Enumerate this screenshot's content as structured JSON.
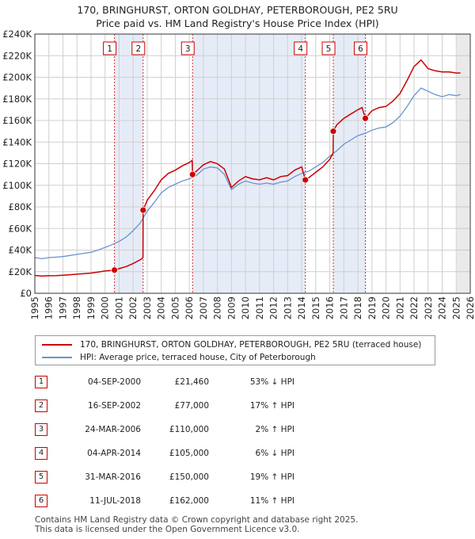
{
  "chart_data": {
    "type": "line",
    "title": "170, BRINGHURST, ORTON GOLDHAY, PETERBOROUGH, PE2 5RU",
    "subtitle": "Price paid vs. HM Land Registry's House Price Index (HPI)",
    "xlabel": "",
    "ylabel": "",
    "xlim": [
      1995,
      2026
    ],
    "ylim": [
      0,
      240000
    ],
    "x_ticks": [
      "1995",
      "1996",
      "1997",
      "1998",
      "1999",
      "2000",
      "2001",
      "2002",
      "2003",
      "2004",
      "2005",
      "2006",
      "2007",
      "2008",
      "2009",
      "2010",
      "2011",
      "2012",
      "2013",
      "2014",
      "2015",
      "2016",
      "2017",
      "2018",
      "2019",
      "2020",
      "2021",
      "2022",
      "2023",
      "2024",
      "2025",
      "2026"
    ],
    "y_ticks": [
      "£0",
      "£20K",
      "£40K",
      "£60K",
      "£80K",
      "£100K",
      "£120K",
      "£140K",
      "£160K",
      "£180K",
      "£200K",
      "£220K",
      "£240K"
    ],
    "y_tick_values": [
      0,
      20000,
      40000,
      60000,
      80000,
      100000,
      120000,
      140000,
      160000,
      180000,
      200000,
      220000,
      240000
    ],
    "grid": true,
    "colors": {
      "property": "#cc0000",
      "hpi": "#6a93cf",
      "shade": "#e6ecf7",
      "marker": "#cc0000"
    },
    "shaded_periods": [
      [
        2000.67,
        2002.71
      ],
      [
        2006.23,
        2014.26
      ],
      [
        2016.25,
        2018.53
      ]
    ],
    "forecast_start": 2025.1,
    "series": [
      {
        "name": "HPI: Average price, terraced house, City of Peterborough",
        "x": [
          1995.0,
          1995.5,
          1996.0,
          1996.5,
          1997.0,
          1997.5,
          1998.0,
          1998.5,
          1999.0,
          1999.5,
          2000.0,
          2000.5,
          2001.0,
          2001.5,
          2002.0,
          2002.5,
          2003.0,
          2003.5,
          2004.0,
          2004.5,
          2005.0,
          2005.5,
          2006.0,
          2006.5,
          2007.0,
          2007.5,
          2008.0,
          2008.5,
          2009.0,
          2009.5,
          2010.0,
          2010.5,
          2011.0,
          2011.5,
          2012.0,
          2012.5,
          2013.0,
          2013.5,
          2014.0,
          2014.5,
          2015.0,
          2015.5,
          2016.0,
          2016.5,
          2017.0,
          2017.5,
          2018.0,
          2018.5,
          2019.0,
          2019.5,
          2020.0,
          2020.5,
          2021.0,
          2021.5,
          2022.0,
          2022.5,
          2023.0,
          2023.5,
          2024.0,
          2024.5,
          2025.0,
          2025.3
        ],
        "values": [
          33000,
          32000,
          33000,
          33500,
          34000,
          35000,
          36000,
          37000,
          38000,
          40000,
          42500,
          45000,
          48000,
          52000,
          58000,
          65000,
          76000,
          84000,
          93000,
          98000,
          101000,
          104000,
          106000,
          109000,
          115000,
          117000,
          116000,
          110000,
          96000,
          101000,
          104000,
          102000,
          101000,
          102000,
          101000,
          103000,
          104000,
          108000,
          111000,
          113000,
          117000,
          121000,
          127000,
          132000,
          138000,
          142000,
          146000,
          148000,
          151000,
          153000,
          154000,
          158000,
          164000,
          173000,
          183000,
          190000,
          187000,
          184000,
          182000,
          184000,
          183000,
          184000
        ]
      },
      {
        "name": "170, BRINGHURST, ORTON GOLDHAY, PETERBOROUGH, PE2 5RU (terraced house)",
        "x": [
          1995.0,
          1995.5,
          1996.0,
          1996.5,
          1997.0,
          1997.5,
          1998.0,
          1998.5,
          1999.0,
          1999.5,
          2000.0,
          2000.5,
          2000.67,
          2001.0,
          2001.5,
          2002.0,
          2002.5,
          2002.7,
          2002.71,
          2003.0,
          2003.5,
          2004.0,
          2004.5,
          2005.0,
          2005.5,
          2006.0,
          2006.2,
          2006.23,
          2006.5,
          2007.0,
          2007.5,
          2008.0,
          2008.5,
          2009.0,
          2009.5,
          2010.0,
          2010.5,
          2011.0,
          2011.5,
          2012.0,
          2012.5,
          2013.0,
          2013.5,
          2014.0,
          2014.26,
          2014.5,
          2015.0,
          2015.5,
          2016.0,
          2016.24,
          2016.25,
          2016.5,
          2017.0,
          2017.5,
          2018.0,
          2018.3,
          2018.53,
          2018.8,
          2019.0,
          2019.5,
          2020.0,
          2020.5,
          2021.0,
          2021.5,
          2022.0,
          2022.5,
          2023.0,
          2023.5,
          2024.0,
          2024.5,
          2025.0,
          2025.3
        ],
        "values": [
          16500,
          16000,
          16200,
          16400,
          16700,
          17200,
          17700,
          18200,
          18700,
          19600,
          20700,
          21200,
          21460,
          22800,
          24700,
          27600,
          31000,
          33000,
          77000,
          86000,
          95000,
          105000,
          111000,
          114000,
          118000,
          121000,
          123000,
          110000,
          113000,
          119000,
          122000,
          120000,
          115000,
          98000,
          104000,
          108000,
          106000,
          105000,
          107000,
          105000,
          108000,
          109000,
          114000,
          117000,
          105000,
          107000,
          112000,
          117000,
          124000,
          130000,
          150000,
          156000,
          162000,
          166000,
          170000,
          172000,
          162000,
          166000,
          169000,
          172000,
          173000,
          178000,
          185000,
          197000,
          210000,
          216000,
          208000,
          206000,
          205000,
          205000,
          204000,
          204000
        ]
      }
    ],
    "sales": [
      {
        "id": "1",
        "x": 2000.67,
        "value": 21460
      },
      {
        "id": "2",
        "x": 2002.71,
        "value": 77000
      },
      {
        "id": "3",
        "x": 2006.23,
        "value": 110000
      },
      {
        "id": "4",
        "x": 2014.26,
        "value": 105000
      },
      {
        "id": "5",
        "x": 2016.25,
        "value": 150000
      },
      {
        "id": "6",
        "x": 2018.53,
        "value": 162000
      }
    ]
  },
  "legend": {
    "property_label": "170, BRINGHURST, ORTON GOLDHAY, PETERBOROUGH, PE2 5RU (terraced house)",
    "hpi_label": "HPI: Average price, terraced house, City of Peterborough"
  },
  "transactions": [
    {
      "id": "1",
      "date": "04-SEP-2000",
      "price": "£21,460",
      "hpi": "53% ↓ HPI"
    },
    {
      "id": "2",
      "date": "16-SEP-2002",
      "price": "£77,000",
      "hpi": "17% ↑ HPI"
    },
    {
      "id": "3",
      "date": "24-MAR-2006",
      "price": "£110,000",
      "hpi": "2% ↑ HPI"
    },
    {
      "id": "4",
      "date": "04-APR-2014",
      "price": "£105,000",
      "hpi": "6% ↓ HPI"
    },
    {
      "id": "5",
      "date": "31-MAR-2016",
      "price": "£150,000",
      "hpi": "19% ↑ HPI"
    },
    {
      "id": "6",
      "date": "11-JUL-2018",
      "price": "£162,000",
      "hpi": "11% ↑ HPI"
    }
  ],
  "footer": {
    "line1": "Contains HM Land Registry data © Crown copyright and database right 2025.",
    "line2": "This data is licensed under the Open Government Licence v3.0."
  }
}
